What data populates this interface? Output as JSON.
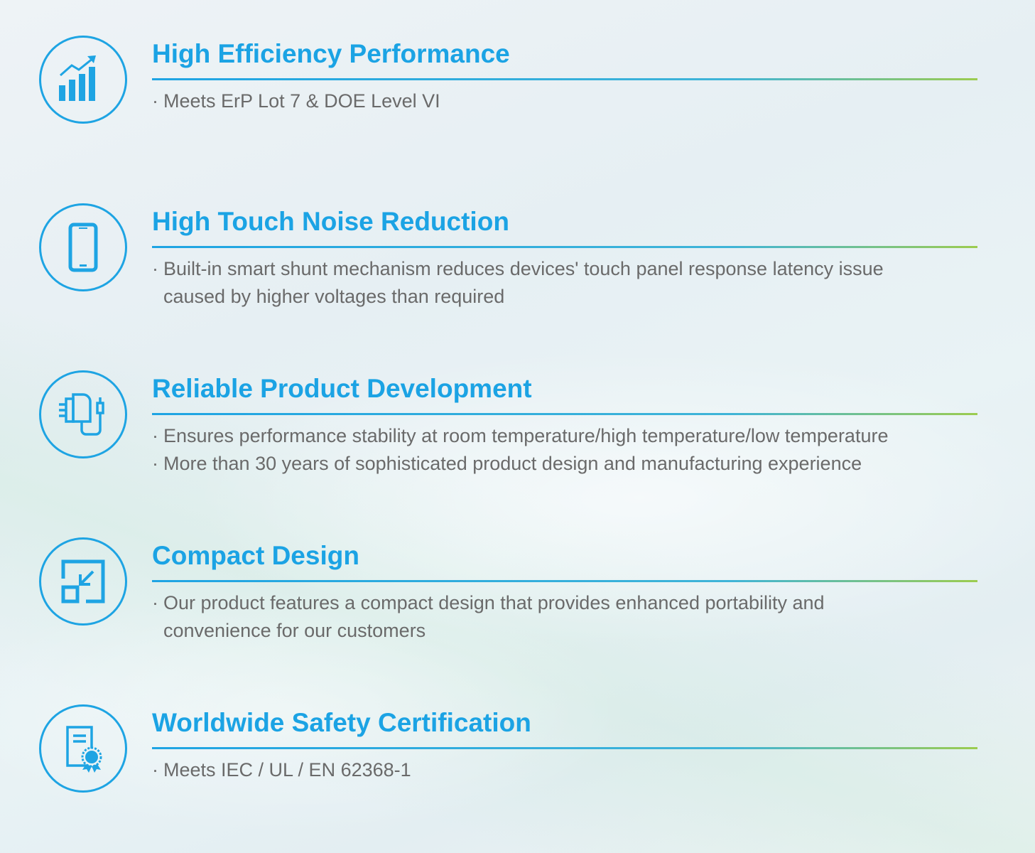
{
  "accent_color": "#1ba3e4",
  "features": [
    {
      "icon": "bar-chart-growth-icon",
      "title": "High Efficiency Performance",
      "lines": [
        {
          "bullet": "·",
          "text": "Meets ErP Lot 7 & DOE Level VI"
        }
      ]
    },
    {
      "icon": "smartphone-icon",
      "title": "High Touch Noise Reduction",
      "lines": [
        {
          "bullet": "·",
          "text": "Built-in smart shunt mechanism reduces devices' touch panel response latency issue"
        },
        {
          "bullet": "",
          "text": "caused by higher voltages than required"
        }
      ]
    },
    {
      "icon": "charger-adapter-icon",
      "title": "Reliable Product Development",
      "lines": [
        {
          "bullet": "·",
          "text": "Ensures performance stability at room temperature/high temperature/low temperature"
        },
        {
          "bullet": "·",
          "text": "More than 30 years of sophisticated product  design and manufacturing experience"
        }
      ]
    },
    {
      "icon": "compact-resize-icon",
      "title": "Compact Design",
      "lines": [
        {
          "bullet": "·",
          "text": "Our product features a compact design that provides enhanced portability and"
        },
        {
          "bullet": "",
          "text": "convenience for our customers"
        }
      ]
    },
    {
      "icon": "certificate-icon",
      "title": "Worldwide Safety Certification",
      "lines": [
        {
          "bullet": "·",
          "text": "Meets IEC / UL / EN 62368-1"
        }
      ]
    }
  ]
}
